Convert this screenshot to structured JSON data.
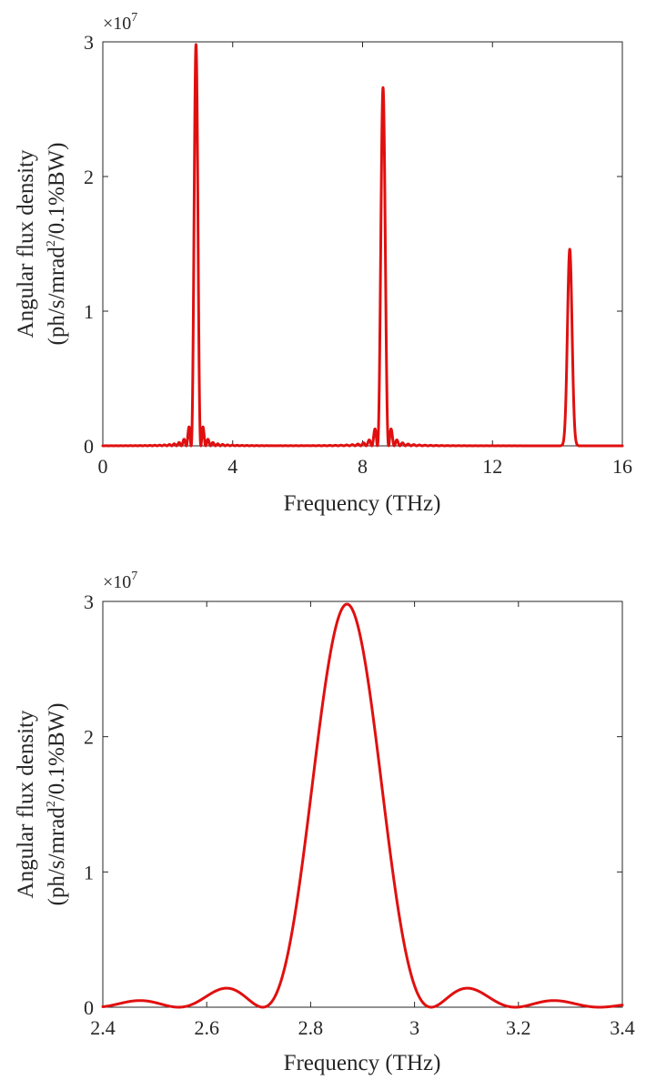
{
  "chart_data": [
    {
      "type": "line",
      "xlabel": "Frequency (THz)",
      "ylabel_line1": "Angular  flux  density",
      "ylabel_line2_pre": "(ph/s/mrad",
      "ylabel_line2_sup": "2",
      "ylabel_line2_post": "/0.1%BW)",
      "exponent_base": "×10",
      "exponent_power": "7",
      "xlim": [
        0,
        16
      ],
      "ylim": [
        0,
        3
      ],
      "y_scale": 10000000,
      "xticks": [
        0,
        4,
        8,
        12,
        16
      ],
      "xtick_labels": [
        "0",
        "4",
        "8",
        "12",
        "16"
      ],
      "yticks": [
        0,
        1,
        2,
        3
      ],
      "ytick_labels": [
        "0",
        "1",
        "2",
        "3"
      ],
      "grid": false,
      "color": "#e01010",
      "peaks": [
        {
          "center": 2.87,
          "height": 2.98,
          "width": 0.065,
          "sidelobes": true
        },
        {
          "center": 8.63,
          "height": 2.66,
          "width": 0.075,
          "sidelobes": true
        },
        {
          "center": 14.38,
          "height": 1.46,
          "width": 0.1,
          "sidelobes": false
        }
      ]
    },
    {
      "type": "line",
      "xlabel": "Frequency (THz)",
      "ylabel_line1": "Angular  flux  density",
      "ylabel_line2_pre": "(ph/s/mrad",
      "ylabel_line2_sup": "2",
      "ylabel_line2_post": "/0.1%BW)",
      "exponent_base": "×10",
      "exponent_power": "7",
      "xlim": [
        2.4,
        3.4
      ],
      "ylim": [
        0,
        3
      ],
      "y_scale": 10000000,
      "xticks": [
        2.4,
        2.6,
        2.8,
        3.0,
        3.2,
        3.4
      ],
      "xtick_labels": [
        "2.4",
        "2.6",
        "2.8",
        "3",
        "3.2",
        "3.4"
      ],
      "yticks": [
        0,
        1,
        2,
        3
      ],
      "ytick_labels": [
        "0",
        "1",
        "2",
        "3"
      ],
      "grid": false,
      "color": "#e01010",
      "peak": {
        "center": 2.87,
        "height": 2.98,
        "first_null_offset": 0.162
      }
    }
  ]
}
